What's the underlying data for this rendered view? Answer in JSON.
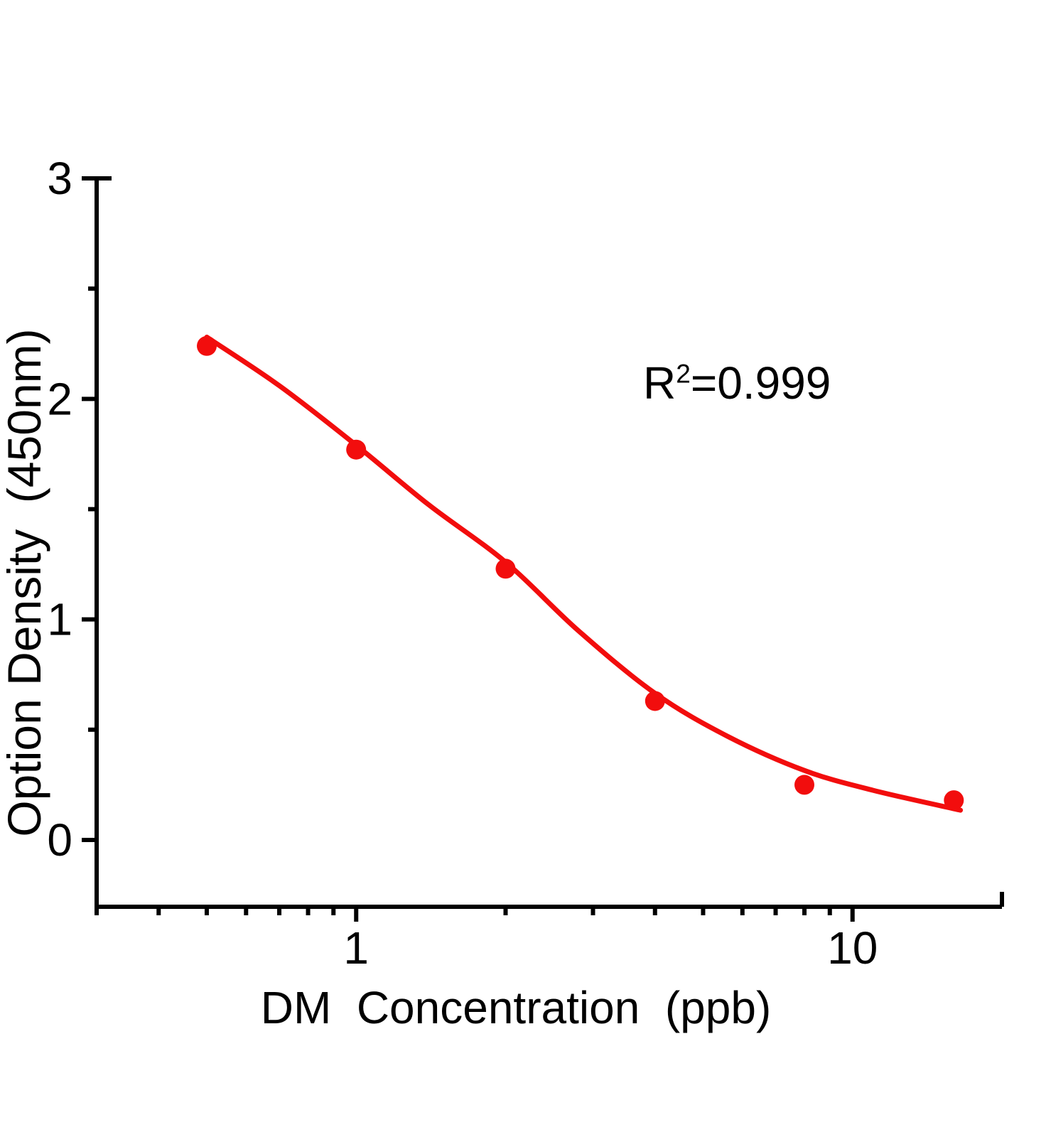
{
  "figure": {
    "background_color": "#ffffff",
    "y_axis_title": "Option Density  (450nm)",
    "x_axis_title": "DM  Concentration  (ppb)",
    "annotation": {
      "base": "R",
      "superscript": "2",
      "rest": "=0.999",
      "full_text": "R²=0.999"
    }
  },
  "chart_data": {
    "type": "scatter",
    "title": "",
    "xlabel": "DM Concentration (ppb)",
    "ylabel": "Option Density (450nm)",
    "annotation": "R²=0.999",
    "x_scale": "log",
    "xlim": [
      0.3,
      20
    ],
    "ylim": [
      -0.303,
      3
    ],
    "grid": false,
    "legend": "none",
    "axis_color": "#000000",
    "series": [
      {
        "color": "#f20d0d",
        "points": [
          {
            "x": 0.5,
            "y": 2.24
          },
          {
            "x": 1,
            "y": 1.77
          },
          {
            "x": 2,
            "y": 1.23
          },
          {
            "x": 4,
            "y": 0.63
          },
          {
            "x": 8,
            "y": 0.25
          },
          {
            "x": 16,
            "y": 0.18
          }
        ],
        "fit_curve": [
          [
            0.5,
            2.28
          ],
          [
            0.7,
            2.06
          ],
          [
            1,
            1.79
          ],
          [
            1.4,
            1.52
          ],
          [
            2,
            1.26
          ],
          [
            2.8,
            0.95
          ],
          [
            4,
            0.665
          ],
          [
            5.6,
            0.47
          ],
          [
            8,
            0.315
          ],
          [
            11,
            0.225
          ],
          [
            16.5,
            0.135
          ]
        ]
      }
    ],
    "x_major_ticks": [
      1,
      10
    ],
    "x_major_tick_labels": [
      "1",
      "10"
    ],
    "x_minor_ticks": [
      0.3,
      0.4,
      0.5,
      0.6,
      0.7,
      0.8,
      0.9,
      2,
      3,
      4,
      5,
      6,
      7,
      8,
      9
    ],
    "y_major_ticks": [
      0,
      1,
      2,
      3
    ],
    "y_major_tick_labels": [
      "0",
      "1",
      "2",
      "3"
    ],
    "y_minor_ticks": [
      0.5,
      1.5,
      2.5
    ]
  }
}
